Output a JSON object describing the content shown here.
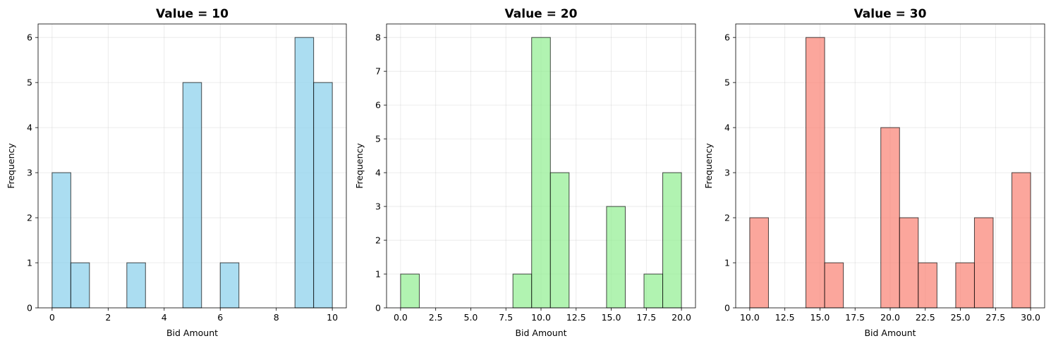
{
  "chart_data": [
    {
      "type": "bar",
      "title": "Value = 10",
      "xlabel": "Bid Amount",
      "ylabel": "Frequency",
      "color": "#87CEEB",
      "xlim": [
        -0.5,
        10.5
      ],
      "ylim": [
        0,
        6.3
      ],
      "xticks": [
        "0",
        "2",
        "4",
        "6",
        "8",
        "10"
      ],
      "yticks": [
        "0",
        "1",
        "2",
        "3",
        "4",
        "5",
        "6"
      ],
      "grid": true,
      "bins": [
        {
          "x0": 0.0,
          "x1": 0.667,
          "count": 3
        },
        {
          "x0": 0.667,
          "x1": 1.333,
          "count": 1
        },
        {
          "x0": 2.667,
          "x1": 3.333,
          "count": 1
        },
        {
          "x0": 4.667,
          "x1": 5.333,
          "count": 5
        },
        {
          "x0": 6.0,
          "x1": 6.667,
          "count": 1
        },
        {
          "x0": 8.667,
          "x1": 9.333,
          "count": 6
        },
        {
          "x0": 9.333,
          "x1": 10.0,
          "count": 5
        }
      ]
    },
    {
      "type": "bar",
      "title": "Value = 20",
      "xlabel": "Bid Amount",
      "ylabel": "Frequency",
      "color": "#90EE90",
      "xlim": [
        -1.0,
        21.0
      ],
      "ylim": [
        0,
        8.4
      ],
      "xticks": [
        "0.0",
        "2.5",
        "5.0",
        "7.5",
        "10.0",
        "12.5",
        "15.0",
        "17.5",
        "20.0"
      ],
      "yticks": [
        "0",
        "1",
        "2",
        "3",
        "4",
        "5",
        "6",
        "7",
        "8"
      ],
      "grid": true,
      "bins": [
        {
          "x0": 0.0,
          "x1": 1.333,
          "count": 1
        },
        {
          "x0": 8.0,
          "x1": 9.333,
          "count": 1
        },
        {
          "x0": 9.333,
          "x1": 10.667,
          "count": 8
        },
        {
          "x0": 10.667,
          "x1": 12.0,
          "count": 4
        },
        {
          "x0": 14.667,
          "x1": 16.0,
          "count": 3
        },
        {
          "x0": 17.333,
          "x1": 18.667,
          "count": 1
        },
        {
          "x0": 18.667,
          "x1": 20.0,
          "count": 4
        }
      ]
    },
    {
      "type": "bar",
      "title": "Value = 30",
      "xlabel": "Bid Amount",
      "ylabel": "Frequency",
      "color": "#FA8072",
      "xlim": [
        9.0,
        31.0
      ],
      "ylim": [
        0,
        6.3
      ],
      "xticks": [
        "10.0",
        "12.5",
        "15.0",
        "17.5",
        "20.0",
        "22.5",
        "25.0",
        "27.5",
        "30.0"
      ],
      "yticks": [
        "0",
        "1",
        "2",
        "3",
        "4",
        "5",
        "6"
      ],
      "grid": true,
      "bins": [
        {
          "x0": 10.0,
          "x1": 11.333,
          "count": 2
        },
        {
          "x0": 14.0,
          "x1": 15.333,
          "count": 6
        },
        {
          "x0": 15.333,
          "x1": 16.667,
          "count": 1
        },
        {
          "x0": 19.333,
          "x1": 20.667,
          "count": 4
        },
        {
          "x0": 20.667,
          "x1": 22.0,
          "count": 2
        },
        {
          "x0": 22.0,
          "x1": 23.333,
          "count": 1
        },
        {
          "x0": 24.667,
          "x1": 26.0,
          "count": 1
        },
        {
          "x0": 26.0,
          "x1": 27.333,
          "count": 2
        },
        {
          "x0": 28.667,
          "x1": 30.0,
          "count": 3
        }
      ]
    }
  ]
}
